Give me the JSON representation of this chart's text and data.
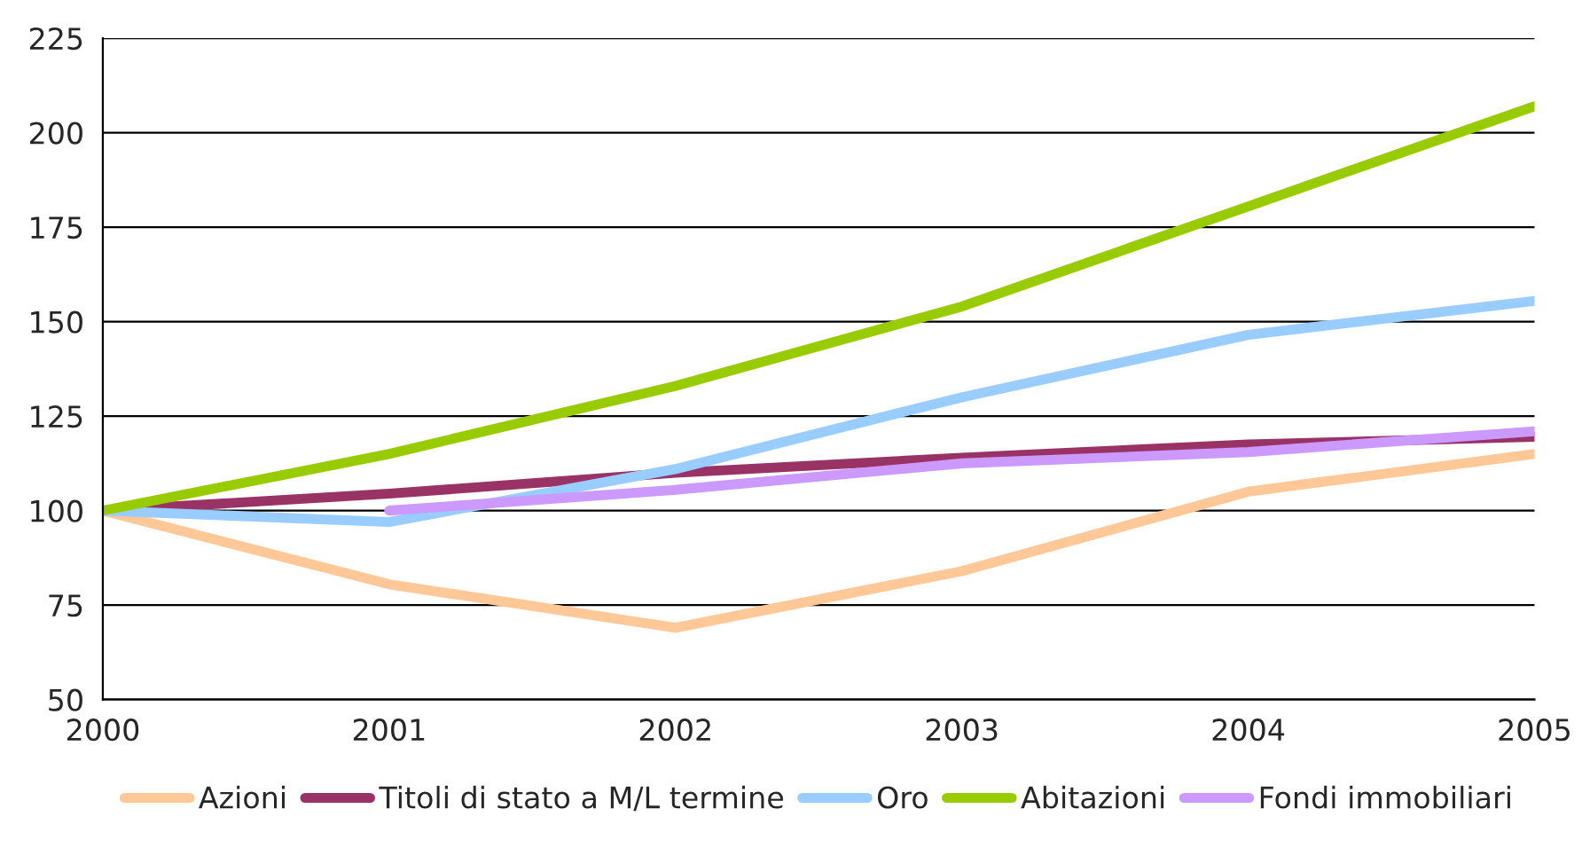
{
  "chart_data": {
    "type": "line",
    "x": [
      2000,
      2001,
      2002,
      2003,
      2004,
      2005
    ],
    "series": [
      {
        "name": "Azioni",
        "color": "#ffc896",
        "values": [
          100,
          80.5,
          69,
          84,
          105,
          115
        ]
      },
      {
        "name": "Titoli di stato a M/L termine",
        "color": "#993366",
        "values": [
          100,
          104.5,
          110,
          114,
          117.5,
          119.5
        ]
      },
      {
        "name": "Oro",
        "color": "#99ccff",
        "values": [
          100,
          97,
          111,
          130,
          146.5,
          155.5
        ]
      },
      {
        "name": "Abitazioni",
        "color": "#99cc00",
        "values": [
          100,
          115,
          133,
          154,
          180.5,
          207
        ]
      },
      {
        "name": "Fondi immobiliari",
        "color": "#cc99ff",
        "values": [
          null,
          100,
          105.5,
          112.5,
          115.5,
          121
        ]
      }
    ],
    "xlim": [
      2000,
      2005
    ],
    "xticks": [
      2000,
      2001,
      2002,
      2003,
      2004,
      2005
    ],
    "ylim": [
      50,
      225
    ],
    "yticks": [
      50,
      75,
      100,
      125,
      150,
      175,
      200,
      225
    ],
    "grid": "y",
    "legend": "bottom",
    "marker": "none",
    "line_style": "solid"
  }
}
